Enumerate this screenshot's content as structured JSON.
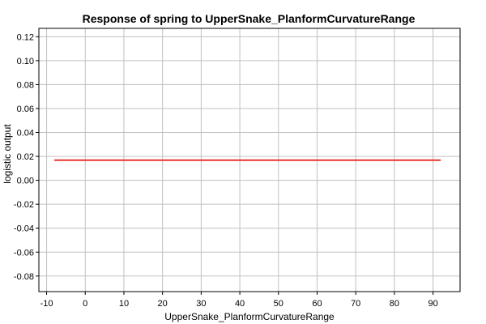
{
  "chart_data": {
    "type": "line",
    "title": "Response of spring to UpperSnake_PlanformCurvatureRange",
    "xlabel": "UpperSnake_PlanformCurvatureRange",
    "ylabel": "logistic output",
    "xlim": [
      -12,
      97
    ],
    "ylim": [
      -0.093,
      0.127
    ],
    "x_ticks": [
      -10,
      0,
      10,
      20,
      30,
      40,
      50,
      60,
      70,
      80,
      90
    ],
    "y_ticks": [
      0.12,
      0.1,
      0.08,
      0.06,
      0.04,
      0.02,
      0.0,
      -0.02,
      -0.04,
      -0.06,
      -0.08
    ],
    "x_tick_labels": [
      "-10",
      "0",
      "10",
      "20",
      "30",
      "40",
      "50",
      "60",
      "70",
      "80",
      "90"
    ],
    "y_tick_labels": [
      "0.12",
      "0.10",
      "0.08",
      "0.06",
      "0.04",
      "0.02",
      "0.00",
      "-0.02",
      "-0.04",
      "-0.06",
      "-0.08"
    ],
    "grid": true,
    "series": [
      {
        "color": "#e8362f",
        "x": [
          -8,
          92
        ],
        "y": [
          0.0168,
          0.0168
        ]
      }
    ]
  }
}
